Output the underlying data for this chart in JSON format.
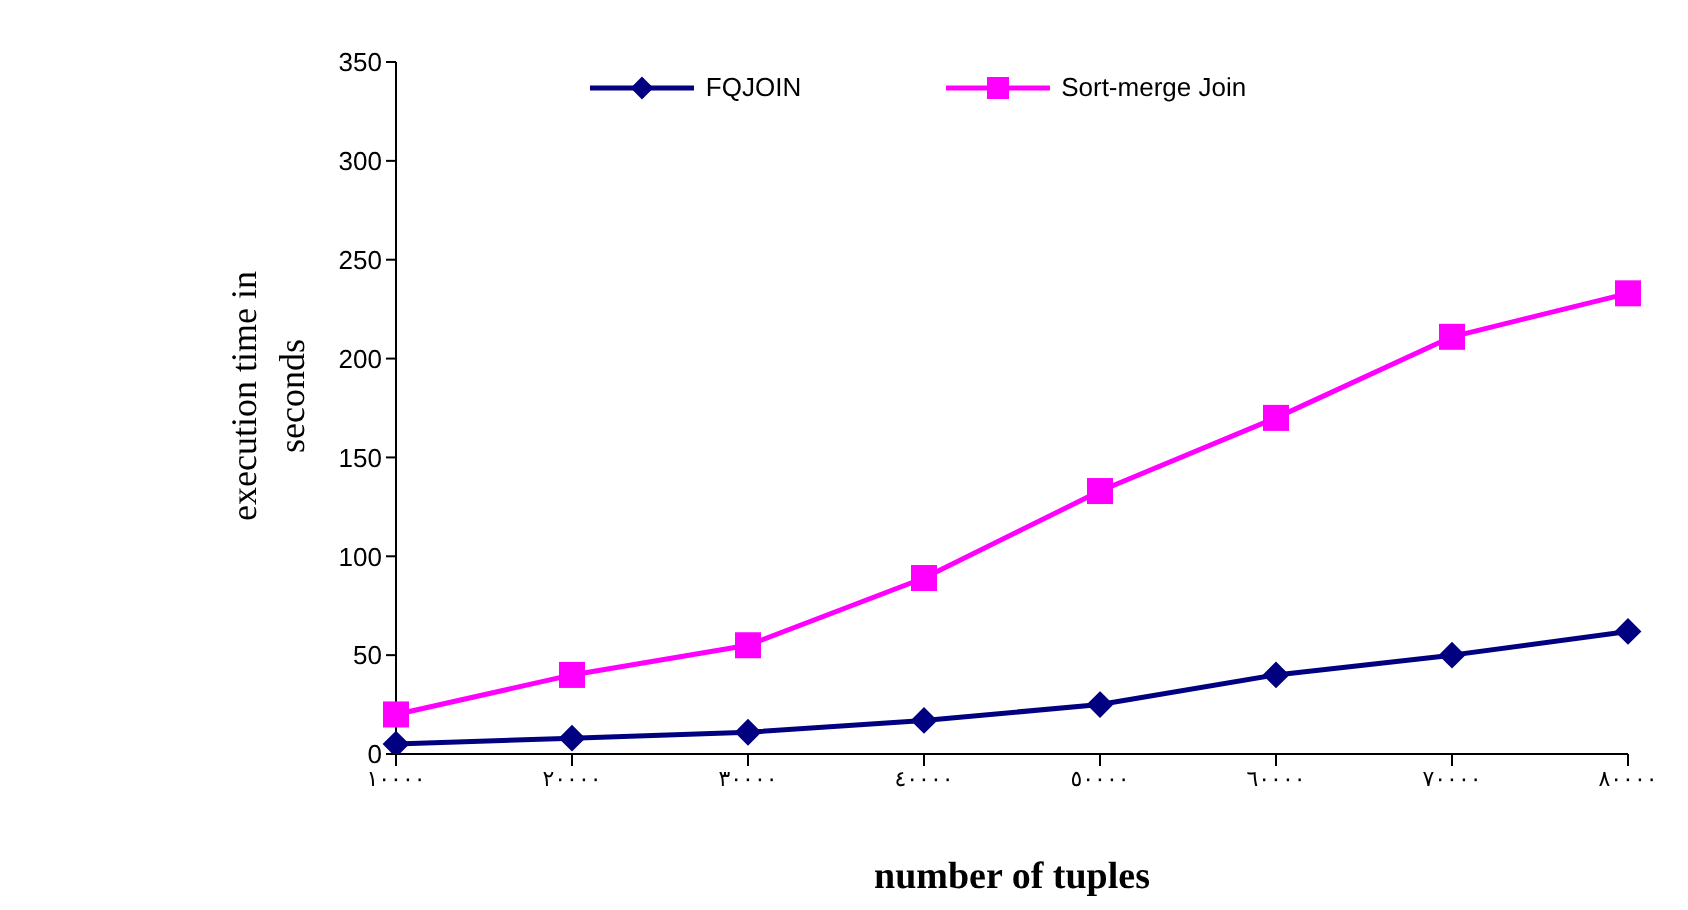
{
  "chart_data": {
    "type": "line",
    "xlabel": "number of tuples",
    "ylabel": "execution time in seconds",
    "categories": [
      "١٠٠٠٠",
      "٢٠٠٠٠",
      "٣٠٠٠٠",
      "٤٠٠٠٠",
      "٥٠٠٠٠",
      "٦٠٠٠٠",
      "٧٠٠٠٠",
      "٨٠٠٠٠"
    ],
    "series": [
      {
        "name": "FQJOIN",
        "color": "#000080",
        "marker": "diamond",
        "values": [
          5,
          8,
          11,
          17,
          25,
          40,
          50,
          62
        ]
      },
      {
        "name": "Sort-merge Join",
        "color": "#ff00ff",
        "marker": "square",
        "values": [
          20,
          40,
          55,
          89,
          133,
          170,
          211,
          233
        ]
      }
    ],
    "ylim": [
      0,
      350
    ],
    "yticks": [
      0,
      50,
      100,
      150,
      200,
      250,
      300,
      350
    ],
    "grid": false,
    "legend": "top",
    "line_style": "solid"
  }
}
